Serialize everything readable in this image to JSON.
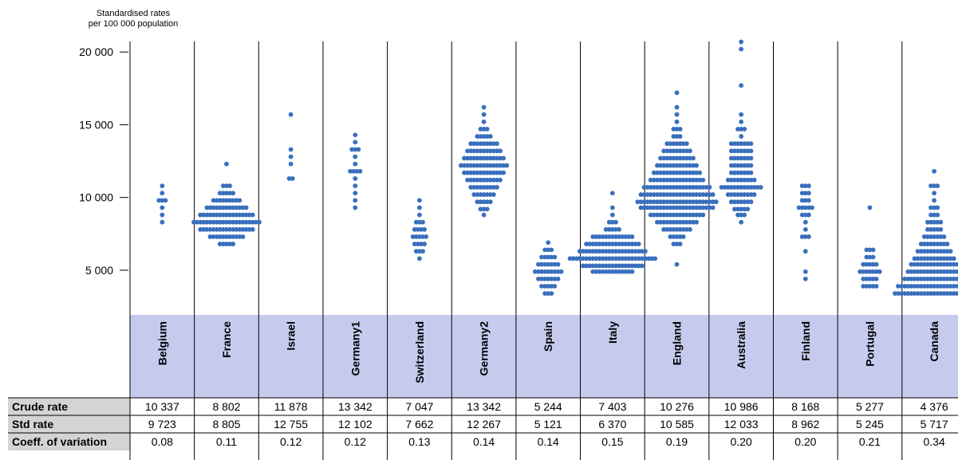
{
  "chart_data": {
    "type": "scatter",
    "title": "",
    "ylabel_lines": [
      "Standardised rates",
      "per 100 000 population"
    ],
    "yticks": [
      5000,
      10000,
      15000,
      20000
    ],
    "ytick_labels": [
      "5 000",
      "10 000",
      "15 000",
      "20 000"
    ],
    "ylim": [
      2200,
      21000
    ],
    "dot_color": "#3a6fbe",
    "band_color": "#c6cbee",
    "grid": false,
    "categories": [
      "Belgium",
      "France",
      "Israel",
      "Germany1",
      "Switzerland",
      "Germany2",
      "Spain",
      "Italy",
      "England",
      "Australia",
      "Finland",
      "Portugal",
      "Canada"
    ],
    "series": [
      {
        "values": [
          [
            10800,
            1
          ],
          [
            10300,
            1
          ],
          [
            9800,
            3
          ],
          [
            9300,
            1
          ],
          [
            8800,
            1
          ],
          [
            8300,
            1
          ]
        ]
      },
      {
        "values": [
          [
            12300,
            1
          ],
          [
            10800,
            3
          ],
          [
            10300,
            5
          ],
          [
            9800,
            9
          ],
          [
            9300,
            13
          ],
          [
            8800,
            17
          ],
          [
            8300,
            21
          ],
          [
            7800,
            17
          ],
          [
            7300,
            11
          ],
          [
            6800,
            5
          ]
        ]
      },
      {
        "values": [
          [
            15700,
            1
          ],
          [
            13300,
            1
          ],
          [
            12800,
            1
          ],
          [
            12300,
            1
          ],
          [
            11300,
            2
          ]
        ]
      },
      {
        "values": [
          [
            14300,
            1
          ],
          [
            13800,
            1
          ],
          [
            13300,
            3
          ],
          [
            12800,
            1
          ],
          [
            12300,
            1
          ],
          [
            11800,
            4
          ],
          [
            11300,
            1
          ],
          [
            10800,
            1
          ],
          [
            10300,
            1
          ],
          [
            9800,
            1
          ],
          [
            9300,
            1
          ]
        ]
      },
      {
        "values": [
          [
            9800,
            1
          ],
          [
            9300,
            1
          ],
          [
            8800,
            1
          ],
          [
            8300,
            3
          ],
          [
            7800,
            4
          ],
          [
            7300,
            5
          ],
          [
            6800,
            4
          ],
          [
            6300,
            3
          ],
          [
            5800,
            1
          ]
        ]
      },
      {
        "values": [
          [
            16200,
            1
          ],
          [
            15700,
            1
          ],
          [
            15200,
            1
          ],
          [
            14700,
            3
          ],
          [
            14200,
            5
          ],
          [
            13700,
            9
          ],
          [
            13200,
            11
          ],
          [
            12700,
            13
          ],
          [
            12200,
            15
          ],
          [
            11700,
            13
          ],
          [
            11200,
            11
          ],
          [
            10700,
            9
          ],
          [
            10200,
            7
          ],
          [
            9700,
            5
          ],
          [
            9200,
            3
          ],
          [
            8800,
            1
          ]
        ]
      },
      {
        "values": [
          [
            6900,
            1
          ],
          [
            6400,
            3
          ],
          [
            5900,
            5
          ],
          [
            5400,
            7
          ],
          [
            4900,
            9
          ],
          [
            4400,
            7
          ],
          [
            3900,
            5
          ],
          [
            3400,
            3
          ]
        ]
      },
      {
        "values": [
          [
            10300,
            1
          ],
          [
            9300,
            1
          ],
          [
            8800,
            1
          ],
          [
            8300,
            3
          ],
          [
            7800,
            5
          ],
          [
            7300,
            13
          ],
          [
            6800,
            17
          ],
          [
            6300,
            21
          ],
          [
            5800,
            27
          ],
          [
            5300,
            19
          ],
          [
            4900,
            13
          ]
        ]
      },
      {
        "values": [
          [
            17200,
            1
          ],
          [
            16200,
            1
          ],
          [
            15700,
            1
          ],
          [
            15200,
            1
          ],
          [
            14700,
            3
          ],
          [
            14200,
            3
          ],
          [
            13700,
            7
          ],
          [
            13200,
            9
          ],
          [
            12700,
            11
          ],
          [
            12200,
            13
          ],
          [
            11700,
            15
          ],
          [
            11200,
            17
          ],
          [
            10700,
            21
          ],
          [
            10200,
            23
          ],
          [
            9700,
            25
          ],
          [
            9300,
            23
          ],
          [
            8800,
            17
          ],
          [
            8300,
            13
          ],
          [
            7800,
            9
          ],
          [
            7300,
            5
          ],
          [
            6800,
            3
          ],
          [
            5400,
            1
          ]
        ]
      },
      {
        "values": [
          [
            20700,
            1
          ],
          [
            20200,
            1
          ],
          [
            17700,
            1
          ],
          [
            15700,
            1
          ],
          [
            15200,
            1
          ],
          [
            14700,
            3
          ],
          [
            14200,
            1
          ],
          [
            13700,
            7
          ],
          [
            13200,
            7
          ],
          [
            12700,
            7
          ],
          [
            12200,
            7
          ],
          [
            11700,
            7
          ],
          [
            11200,
            9
          ],
          [
            10700,
            13
          ],
          [
            10200,
            9
          ],
          [
            9700,
            7
          ],
          [
            9200,
            5
          ],
          [
            8800,
            3
          ],
          [
            8300,
            1
          ]
        ]
      },
      {
        "values": [
          [
            10800,
            3
          ],
          [
            10300,
            3
          ],
          [
            9800,
            3
          ],
          [
            9300,
            5
          ],
          [
            8800,
            3
          ],
          [
            8300,
            1
          ],
          [
            7800,
            1
          ],
          [
            7300,
            3
          ],
          [
            6300,
            1
          ],
          [
            4900,
            1
          ],
          [
            4400,
            1
          ]
        ]
      },
      {
        "values": [
          [
            9300,
            1
          ],
          [
            6400,
            3
          ],
          [
            5900,
            3
          ],
          [
            5400,
            5
          ],
          [
            4900,
            7
          ],
          [
            4400,
            5
          ],
          [
            3900,
            5
          ]
        ]
      },
      {
        "values": [
          [
            11800,
            1
          ],
          [
            10800,
            3
          ],
          [
            10300,
            1
          ],
          [
            9800,
            1
          ],
          [
            9300,
            3
          ],
          [
            8800,
            3
          ],
          [
            8300,
            5
          ],
          [
            7800,
            5
          ],
          [
            7300,
            7
          ],
          [
            6800,
            9
          ],
          [
            6300,
            11
          ],
          [
            5800,
            13
          ],
          [
            5400,
            15
          ],
          [
            4900,
            17
          ],
          [
            4400,
            19
          ],
          [
            3900,
            23
          ],
          [
            3400,
            25
          ]
        ]
      }
    ],
    "table": {
      "rows": [
        {
          "label": "Crude rate",
          "values": [
            "10 337",
            "8 802",
            "11 878",
            "13 342",
            "7 047",
            "13 342",
            "5 244",
            "7 403",
            "10 276",
            "10 986",
            "8 168",
            "5 277",
            "4 376"
          ]
        },
        {
          "label": "Std rate",
          "values": [
            "9 723",
            "8 805",
            "12 755",
            "12 102",
            "7 662",
            "12 267",
            "5 121",
            "6 370",
            "10 585",
            "12 033",
            "8 962",
            "5 245",
            "5 717"
          ]
        },
        {
          "label": "Coeff. of variation",
          "values": [
            "0.08",
            "0.11",
            "0.12",
            "0.12",
            "0.13",
            "0.14",
            "0.14",
            "0.15",
            "0.19",
            "0.20",
            "0.20",
            "0.21",
            "0.34"
          ]
        }
      ],
      "row_label_bg": "#d4d4d4"
    }
  }
}
